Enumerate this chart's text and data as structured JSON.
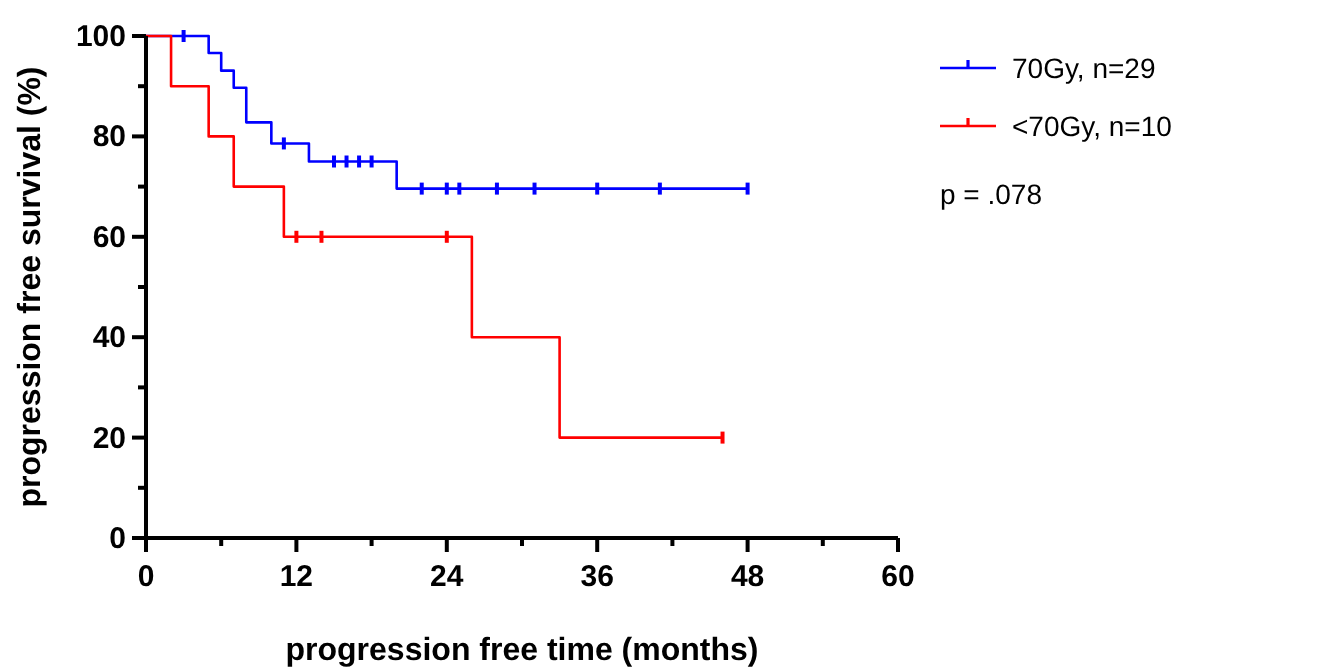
{
  "chart_data": {
    "type": "step",
    "xlabel": "progression free time (months)",
    "ylabel": "progression free survival (%)",
    "xlim": [
      0,
      60
    ],
    "xticks": [
      0,
      12,
      24,
      36,
      48,
      60
    ],
    "ylim": [
      0,
      100
    ],
    "yticks": [
      0,
      20,
      40,
      60,
      80,
      100
    ],
    "grid": false,
    "legend": "top right",
    "annotations": [
      "p = .078"
    ],
    "series": [
      {
        "name": "70Gy, n=29",
        "color": "#0000ff",
        "x": [
          0,
          5,
          6,
          7,
          8,
          10,
          13,
          20,
          48
        ],
        "values": [
          100,
          96.6,
          93.1,
          89.7,
          82.8,
          78.6,
          75,
          69.6,
          69.6
        ]
      },
      {
        "name": "<70Gy, n=10",
        "color": "#ff0000",
        "x": [
          0,
          2,
          5,
          7,
          11,
          26,
          33,
          46
        ],
        "values": [
          100,
          90,
          80,
          70,
          60,
          40,
          20,
          20
        ]
      },
      {
        "type": "scatter",
        "color": "#0000ff",
        "x": [
          3,
          11,
          15,
          16,
          17,
          18,
          22,
          24,
          25,
          28,
          31,
          36,
          41,
          48
        ],
        "values": [
          100,
          78.6,
          75,
          75,
          75,
          75,
          69.6,
          69.6,
          69.6,
          69.6,
          69.6,
          69.6,
          69.6,
          69.6
        ]
      },
      {
        "type": "scatter",
        "color": "#ff0000",
        "x": [
          12,
          14,
          24,
          46
        ],
        "values": [
          60,
          60,
          60,
          20
        ]
      }
    ]
  }
}
